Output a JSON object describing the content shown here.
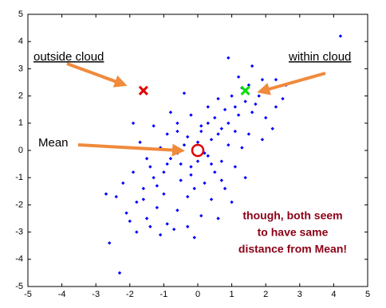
{
  "chart_data": {
    "type": "scatter",
    "xlim": [
      -5,
      5
    ],
    "ylim": [
      -5,
      5
    ],
    "xticks": [
      -5,
      -4,
      -3,
      -2,
      -1,
      0,
      1,
      2,
      3,
      4,
      5
    ],
    "yticks": [
      -5,
      -4,
      -3,
      -2,
      -1,
      0,
      1,
      2,
      3,
      4,
      5
    ],
    "annotations": [
      "outside cloud",
      "within cloud",
      "Mean",
      "though, both seem",
      "to have same",
      "distance from Mean!"
    ],
    "series": [
      {
        "marker": "diamond",
        "color": "#0000ff",
        "x": [
          4.2,
          -2.6,
          -2.3,
          0.9,
          1.6,
          1.2,
          1.9,
          1.5,
          2.3,
          1.8,
          1.4,
          1.0,
          0.6,
          -0.4,
          0.3,
          0.8,
          1.2,
          1.6,
          2.0,
          0.5,
          -0.2,
          -0.6,
          -1.3,
          -1.9,
          0.1,
          0.7,
          1.1,
          1.5,
          1.9,
          -0.9,
          -1.7,
          -0.3,
          0.4,
          0.9,
          1.3,
          -1.1,
          -0.6,
          0.3,
          0.7,
          1.1,
          -1.5,
          -0.9,
          -0.2,
          0.5,
          1.4,
          -1.9,
          -1.3,
          -0.5,
          0.2,
          0.8,
          -2.2,
          -1.6,
          -1.0,
          -0.3,
          0.4,
          1.0,
          -2.4,
          -1.8,
          -1.2,
          -0.6,
          0.1,
          0.6,
          -2.1,
          -1.5,
          -0.9,
          -0.3,
          -1.8,
          -1.1,
          -0.7,
          -1.4,
          -0.1,
          0.2,
          0.0,
          -0.4,
          0.6,
          -0.8,
          0.9,
          1.7,
          2.3,
          2.6,
          -0.2,
          0.4,
          -1.0,
          0.1,
          -0.5,
          0.3,
          -2.7,
          -2.0,
          1.3,
          1.1,
          -0.8,
          -1.6,
          0.7,
          -0.1,
          -1.2,
          2.2,
          2.5,
          -0.6,
          -1.4,
          0.0
        ],
        "values": [
          4.2,
          -3.4,
          -4.5,
          3.4,
          3.1,
          2.7,
          2.6,
          2.4,
          2.6,
          2.0,
          1.8,
          2.0,
          1.9,
          2.1,
          1.6,
          1.5,
          1.3,
          1.4,
          1.2,
          1.2,
          1.3,
          1.0,
          0.9,
          1.0,
          0.9,
          0.8,
          0.7,
          0.6,
          0.4,
          0.6,
          0.3,
          0.5,
          0.4,
          0.2,
          0.1,
          0.1,
          -0.1,
          -0.2,
          -0.4,
          -0.6,
          -0.3,
          -0.5,
          -0.6,
          -0.8,
          -1.0,
          -0.8,
          -1.0,
          -1.1,
          -1.2,
          -1.4,
          -1.2,
          -1.4,
          -1.6,
          -1.7,
          -1.8,
          -1.9,
          -1.7,
          -1.9,
          -2.1,
          -2.2,
          -2.4,
          -2.5,
          -2.3,
          -2.5,
          -2.7,
          -2.8,
          -3.0,
          -3.1,
          -2.9,
          -2.8,
          -3.2,
          -0.1,
          0.3,
          0.2,
          0.6,
          -0.3,
          1.0,
          1.7,
          1.6,
          2.4,
          -0.9,
          -0.5,
          -0.8,
          0.7,
          -0.5,
          1.0,
          -1.6,
          -2.6,
          2.3,
          1.6,
          1.4,
          -1.8,
          -1.1,
          -1.4,
          -1.3,
          0.8,
          1.9,
          0.7,
          -0.6,
          -0.4
        ]
      },
      {
        "marker": "circle",
        "color": "#e00000",
        "x": [
          0
        ],
        "values": [
          0
        ]
      },
      {
        "marker": "cross",
        "color": "#e00000",
        "x": [
          -1.6
        ],
        "values": [
          2.2
        ]
      },
      {
        "marker": "cross",
        "color": "#00dd00",
        "x": [
          1.4
        ],
        "values": [
          2.2
        ]
      }
    ]
  }
}
